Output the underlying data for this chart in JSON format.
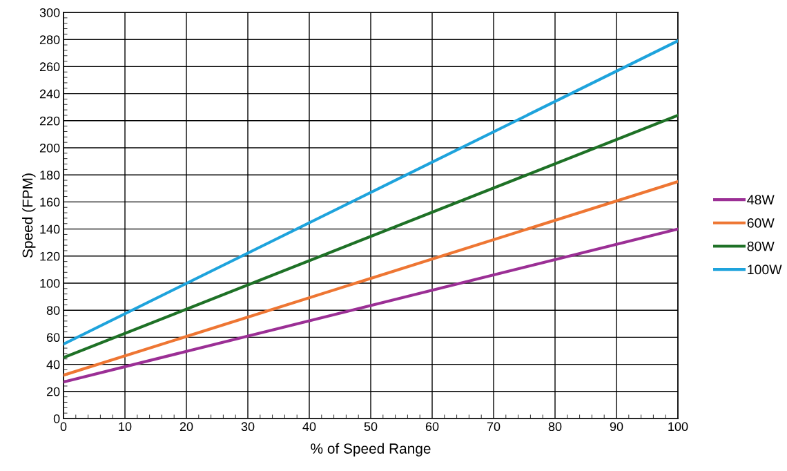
{
  "chart_data": {
    "type": "line",
    "xlabel": "% of Speed Range",
    "ylabel": "Speed (FPM)",
    "x": [
      0,
      100
    ],
    "series": [
      {
        "name": "48W",
        "color": "#9b2f95",
        "values": [
          27,
          140
        ]
      },
      {
        "name": "60W",
        "color": "#ee7633",
        "values": [
          32,
          175
        ]
      },
      {
        "name": "80W",
        "color": "#1e7126",
        "values": [
          45,
          224
        ]
      },
      {
        "name": "100W",
        "color": "#1ea3dc",
        "values": [
          55,
          279
        ]
      }
    ],
    "xlim": [
      0,
      100
    ],
    "xticks": [
      0,
      10,
      20,
      30,
      40,
      50,
      60,
      70,
      80,
      90,
      100
    ],
    "ylim": [
      0,
      300
    ],
    "yticks": [
      0,
      20,
      40,
      60,
      80,
      100,
      120,
      140,
      160,
      180,
      200,
      220,
      240,
      260,
      280,
      300
    ],
    "grid": true,
    "legend": "right",
    "marker": "none",
    "line_style": "solid"
  }
}
